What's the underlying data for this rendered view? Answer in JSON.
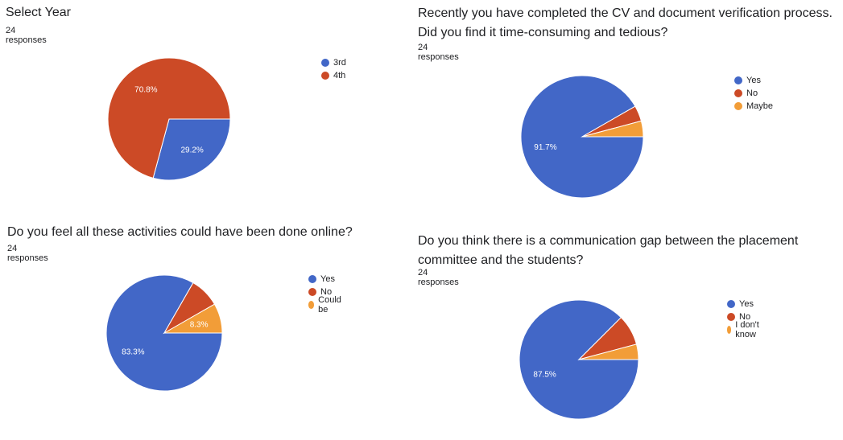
{
  "chart_data": [
    {
      "type": "pie",
      "title": "Select Year",
      "subtitle": "24 responses",
      "categories": [
        "3rd",
        "4th"
      ],
      "values": [
        29.2,
        70.8
      ],
      "value_labels": [
        "29.2%",
        "70.8%"
      ],
      "colors": [
        "#4267c7",
        "#cc4a26"
      ],
      "legend": "right"
    },
    {
      "type": "pie",
      "title": "Recently you have completed the CV and document verification process. Did you find it time-consuming and tedious?",
      "subtitle": "24 responses",
      "categories": [
        "Yes",
        "No",
        "Maybe"
      ],
      "values": [
        91.7,
        4.15,
        4.15
      ],
      "value_labels": [
        "91.7%",
        "",
        ""
      ],
      "colors": [
        "#4267c7",
        "#cc4a26",
        "#f29d38"
      ],
      "legend": "right"
    },
    {
      "type": "pie",
      "title": "Do you feel all these activities could have been done online?",
      "subtitle": "24 responses",
      "categories": [
        "Yes",
        "No",
        "Could be"
      ],
      "values": [
        83.3,
        8.4,
        8.3
      ],
      "value_labels": [
        "83.3%",
        "",
        "8.3%"
      ],
      "colors": [
        "#4267c7",
        "#cc4a26",
        "#f29d38"
      ],
      "legend": "right"
    },
    {
      "type": "pie",
      "title": "Do you think there is a communication gap between the placement committee and the students?",
      "subtitle": "24 responses",
      "categories": [
        "Yes",
        "No",
        "I don't know"
      ],
      "values": [
        87.5,
        8.35,
        4.15
      ],
      "value_labels": [
        "87.5%",
        "",
        ""
      ],
      "colors": [
        "#4267c7",
        "#cc4a26",
        "#f29d38"
      ],
      "legend": "right"
    }
  ]
}
